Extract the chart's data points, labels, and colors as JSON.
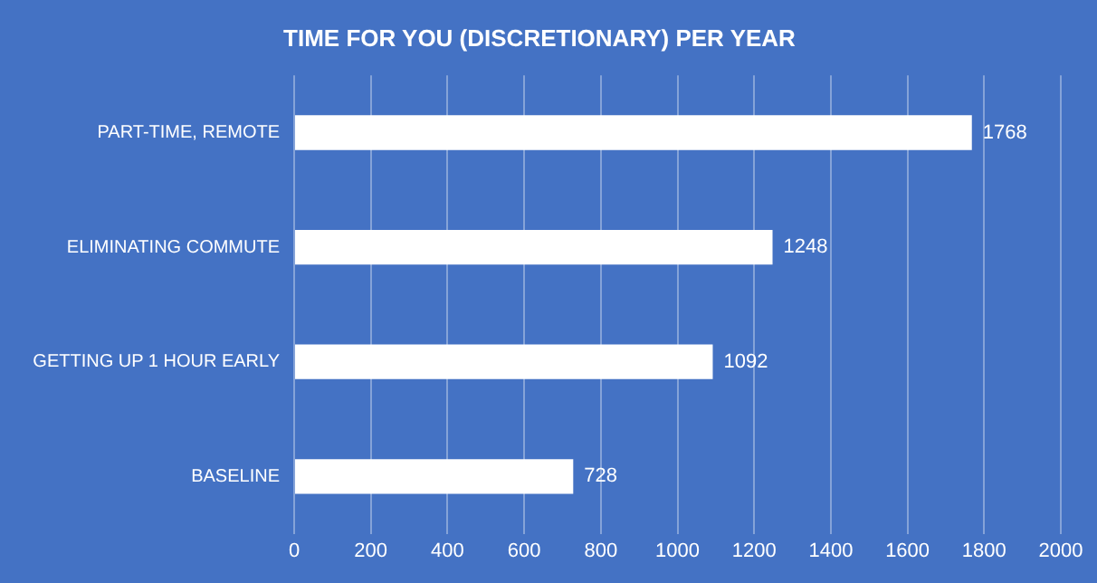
{
  "chart_data": {
    "type": "bar",
    "title": "TIME FOR YOU (DISCRETIONARY) PER YEAR",
    "orientation": "horizontal",
    "categories": [
      "PART-TIME, REMOTE",
      "ELIMINATING COMMUTE",
      "GETTING UP 1 HOUR EARLY",
      "BASELINE"
    ],
    "values": [
      1768,
      1248,
      1092,
      728
    ],
    "color": "#ffffff",
    "xlim": [
      0,
      2000
    ],
    "xticks": [
      0,
      200,
      400,
      600,
      800,
      1000,
      1200,
      1400,
      1600,
      1800,
      2000
    ],
    "grid": "x",
    "legend": false,
    "data_labels": true
  }
}
